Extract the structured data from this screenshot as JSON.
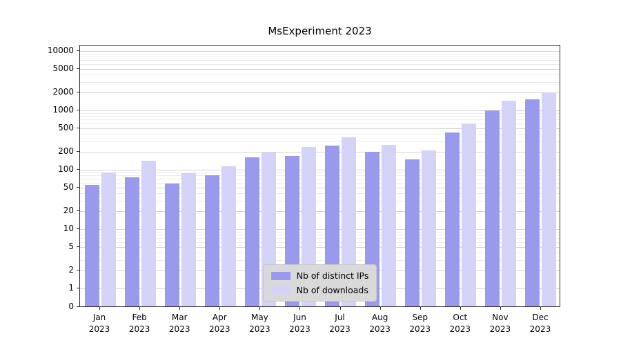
{
  "chart_data": {
    "type": "bar",
    "title": "MsExperiment 2023",
    "year": "2023",
    "months": [
      "Jan",
      "Feb",
      "Mar",
      "Apr",
      "May",
      "Jun",
      "Jul",
      "Aug",
      "Sep",
      "Oct",
      "Nov",
      "Dec"
    ],
    "series": [
      {
        "name": "Nb of distinct IPs",
        "color": "#9999ee",
        "values": [
          55,
          75,
          58,
          80,
          160,
          170,
          255,
          200,
          150,
          420,
          1000,
          1550
        ]
      },
      {
        "name": "Nb of downloads",
        "color": "#d3d3f7",
        "values": [
          90,
          140,
          88,
          115,
          195,
          240,
          350,
          265,
          210,
          600,
          1450,
          2000
        ]
      }
    ],
    "yscale": "log",
    "yticks": [
      0,
      1,
      2,
      5,
      10,
      20,
      50,
      100,
      200,
      500,
      1000,
      2000,
      5000,
      10000
    ],
    "ylim": [
      0,
      10000
    ],
    "grid": true,
    "legend_position": "lower center",
    "xlabel": "",
    "ylabel": ""
  }
}
